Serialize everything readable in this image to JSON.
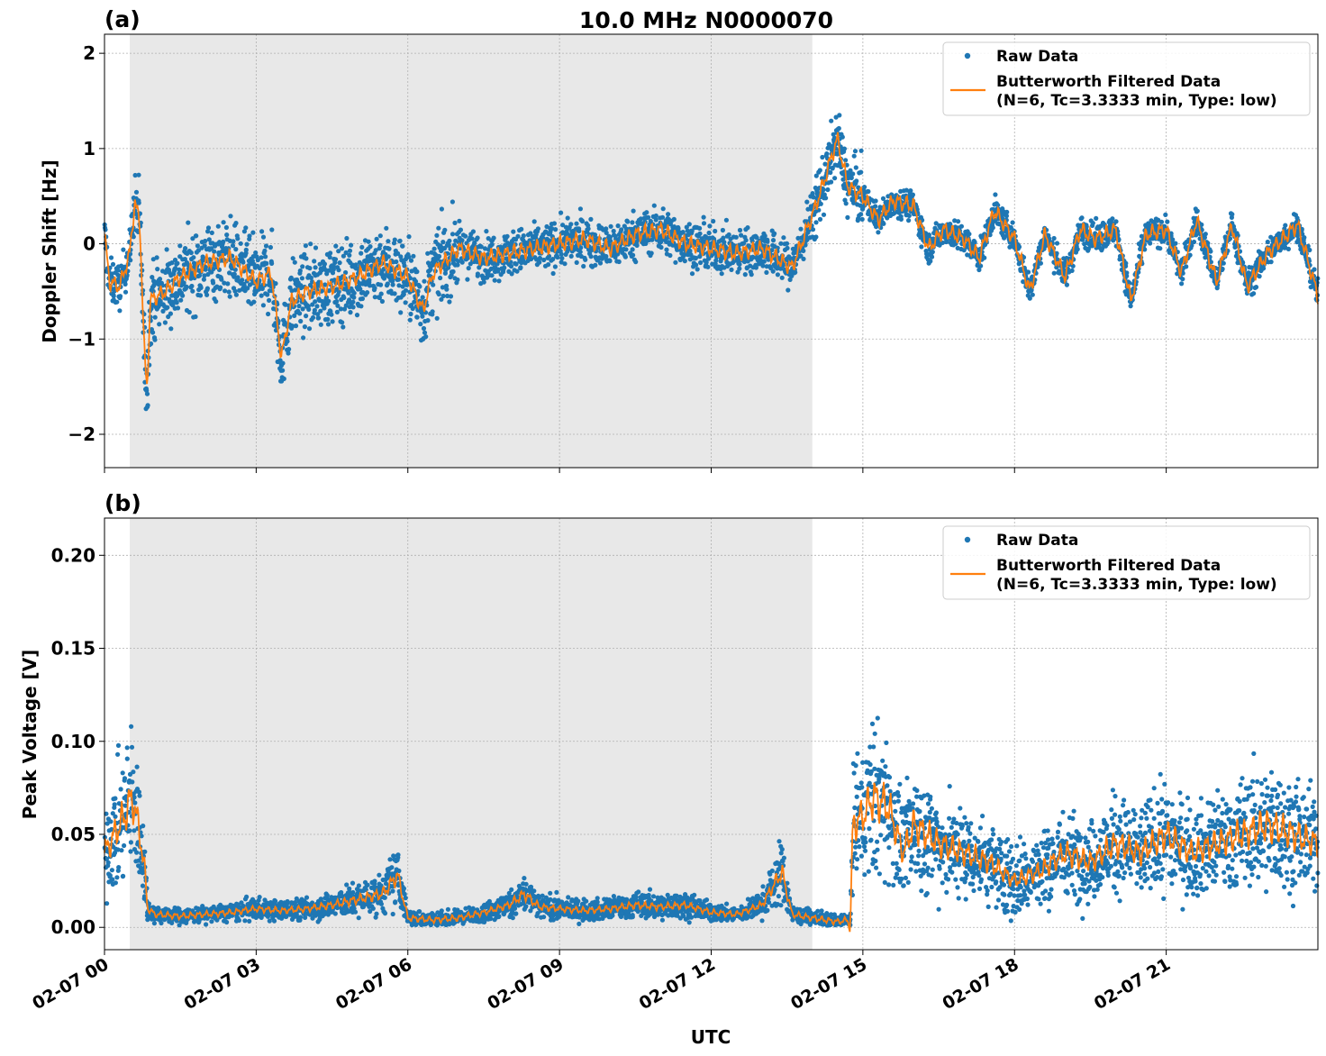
{
  "figure": {
    "title": "10.0 MHz N0000070",
    "xlabel": "UTC"
  },
  "colors": {
    "raw": "#1f77b4",
    "filtered": "#ff7f0e",
    "shade": "#e8e8e8",
    "grid": "#b0b0b0"
  },
  "legend": {
    "raw_label": "Raw Data",
    "filtered_label_line1": "Butterworth Filtered Data",
    "filtered_label_line2": "(N=6, Tc=3.3333 min, Type: low)"
  },
  "chart_data": [
    {
      "type": "scatter",
      "panel_label": "(a)",
      "title": "10.0 MHz N0000070",
      "ylabel": "Doppler Shift [Hz]",
      "xlabel": "",
      "x_unit": "hours since 02-07 00:00 UTC",
      "xlim": [
        0,
        24
      ],
      "ylim": [
        -2.35,
        2.2
      ],
      "x_ticks": [
        0,
        3,
        6,
        9,
        12,
        15,
        18,
        21
      ],
      "x_tick_labels": [
        "02-07 00",
        "02-07 03",
        "02-07 06",
        "02-07 09",
        "02-07 12",
        "02-07 15",
        "02-07 18",
        "02-07 21"
      ],
      "show_x_tick_labels": false,
      "y_ticks": [
        -2,
        -1,
        0,
        1,
        2
      ],
      "y_tick_labels": [
        "−2",
        "−1",
        "0",
        "1",
        "2"
      ],
      "shaded_x_range": [
        0.5,
        14.0
      ],
      "grid": true,
      "legend_position": "top-right",
      "series": [
        {
          "name": "Raw Data",
          "kind": "scatter",
          "y_spread": 0.35
        },
        {
          "name": "Butterworth Filtered Data (N=6, Tc=3.3333 min, Type: low)",
          "kind": "line",
          "x": [
            0,
            0.1,
            0.3,
            0.5,
            0.6,
            0.7,
            0.8,
            0.85,
            0.9,
            1.2,
            1.5,
            2.0,
            2.5,
            3.0,
            3.3,
            3.5,
            3.7,
            4.0,
            4.5,
            5.0,
            5.5,
            6.0,
            6.3,
            6.5,
            7.0,
            7.5,
            8.0,
            8.5,
            9.0,
            9.5,
            10.0,
            10.5,
            11.0,
            11.5,
            12.0,
            12.5,
            13.0,
            13.3,
            13.6,
            14.0,
            14.2,
            14.4,
            14.5,
            14.7,
            15.0,
            15.3,
            15.6,
            16.0,
            16.3,
            16.6,
            17.0,
            17.3,
            17.6,
            18.0,
            18.3,
            18.6,
            19.0,
            19.3,
            19.6,
            20.0,
            20.3,
            20.6,
            21.0,
            21.3,
            21.6,
            22.0,
            22.3,
            22.6,
            23.0,
            23.3,
            23.6,
            24.0
          ],
          "y": [
            0.1,
            -0.4,
            -0.45,
            -0.1,
            0.45,
            0.2,
            -1.3,
            -1.5,
            -0.6,
            -0.5,
            -0.35,
            -0.2,
            -0.15,
            -0.4,
            -0.3,
            -1.2,
            -0.6,
            -0.5,
            -0.45,
            -0.35,
            -0.2,
            -0.35,
            -0.7,
            -0.3,
            -0.05,
            -0.15,
            -0.1,
            -0.05,
            0.0,
            0.05,
            -0.05,
            0.1,
            0.15,
            0.0,
            -0.05,
            -0.1,
            -0.05,
            -0.15,
            -0.25,
            0.3,
            0.6,
            0.95,
            1.1,
            0.6,
            0.5,
            0.25,
            0.45,
            0.4,
            -0.05,
            0.15,
            0.05,
            -0.15,
            0.35,
            0.05,
            -0.5,
            0.1,
            -0.35,
            0.15,
            0.05,
            0.15,
            -0.6,
            0.1,
            0.15,
            -0.3,
            0.25,
            -0.4,
            0.2,
            -0.45,
            -0.1,
            0.05,
            0.2,
            -0.55
          ]
        }
      ]
    },
    {
      "type": "scatter",
      "panel_label": "(b)",
      "title": "",
      "ylabel": "Peak Voltage [V]",
      "xlabel": "UTC",
      "x_unit": "hours since 02-07 00:00 UTC",
      "xlim": [
        0,
        24
      ],
      "ylim": [
        -0.012,
        0.22
      ],
      "x_ticks": [
        0,
        3,
        6,
        9,
        12,
        15,
        18,
        21
      ],
      "x_tick_labels": [
        "02-07 00",
        "02-07 03",
        "02-07 06",
        "02-07 09",
        "02-07 12",
        "02-07 15",
        "02-07 18",
        "02-07 21"
      ],
      "show_x_tick_labels": true,
      "y_ticks": [
        0.0,
        0.05,
        0.1,
        0.15,
        0.2
      ],
      "y_tick_labels": [
        "0.00",
        "0.05",
        "0.10",
        "0.15",
        "0.20"
      ],
      "shaded_x_range": [
        0.5,
        14.0
      ],
      "grid": true,
      "legend_position": "top-right",
      "series": [
        {
          "name": "Raw Data",
          "kind": "scatter",
          "y_spread_fraction": 0.6
        },
        {
          "name": "Butterworth Filtered Data (N=6, Tc=3.3333 min, Type: low)",
          "kind": "line",
          "x": [
            0,
            0.2,
            0.4,
            0.55,
            0.7,
            0.8,
            0.85,
            1.0,
            1.5,
            2.0,
            2.5,
            3.0,
            3.5,
            4.0,
            4.5,
            5.0,
            5.5,
            5.8,
            6.0,
            6.5,
            7.0,
            7.5,
            8.0,
            8.3,
            8.6,
            9.0,
            9.5,
            10.0,
            10.5,
            11.0,
            11.5,
            12.0,
            12.5,
            13.0,
            13.4,
            13.6,
            14.0,
            14.5,
            14.7,
            14.75,
            14.8,
            15.0,
            15.2,
            15.5,
            15.8,
            16.0,
            16.5,
            17.0,
            17.5,
            18.0,
            18.5,
            19.0,
            19.5,
            20.0,
            20.5,
            21.0,
            21.5,
            22.0,
            22.5,
            23.0,
            23.5,
            24.0
          ],
          "y": [
            0.04,
            0.05,
            0.06,
            0.07,
            0.05,
            0.03,
            0.01,
            0.007,
            0.006,
            0.007,
            0.008,
            0.01,
            0.009,
            0.01,
            0.012,
            0.015,
            0.018,
            0.028,
            0.005,
            0.004,
            0.005,
            0.008,
            0.012,
            0.018,
            0.011,
            0.01,
            0.009,
            0.01,
            0.012,
            0.011,
            0.012,
            0.008,
            0.007,
            0.012,
            0.03,
            0.007,
            0.005,
            0.003,
            0.004,
            -0.002,
            0.055,
            0.06,
            0.07,
            0.065,
            0.04,
            0.055,
            0.045,
            0.04,
            0.035,
            0.025,
            0.03,
            0.04,
            0.035,
            0.045,
            0.04,
            0.05,
            0.04,
            0.045,
            0.05,
            0.055,
            0.05,
            0.045
          ]
        }
      ]
    }
  ]
}
